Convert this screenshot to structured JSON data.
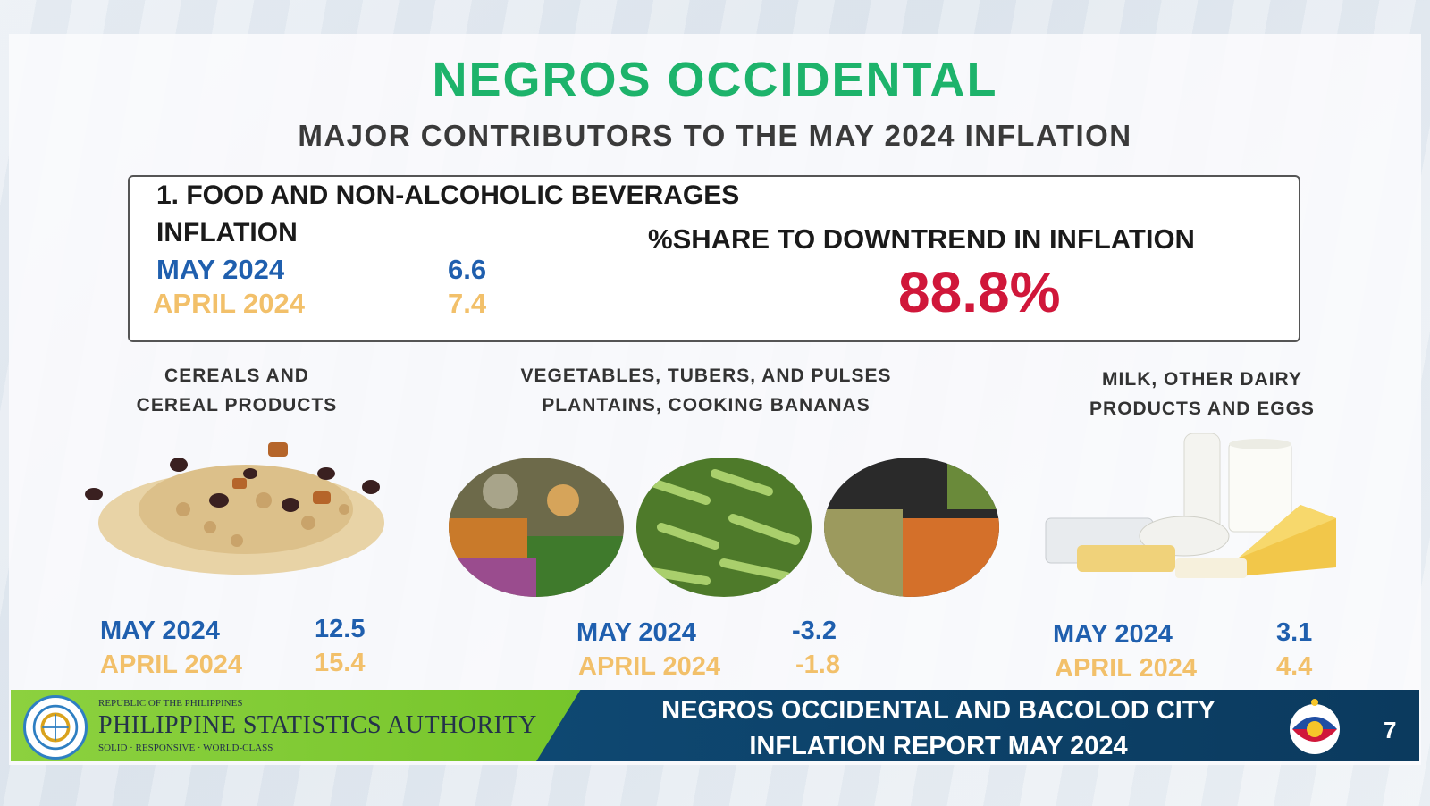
{
  "title": "NEGROS OCCIDENTAL",
  "subtitle": "MAJOR CONTRIBUTORS TO THE MAY 2024 INFLATION",
  "summary": {
    "category": "1. FOOD AND NON-ALCOHOLIC BEVERAGES",
    "inflation_label": "INFLATION",
    "may_label": "MAY 2024",
    "may_value": "6.6",
    "april_label": "APRIL 2024",
    "april_value": "7.4",
    "share_label": "%SHARE TO DOWNTREND IN INFLATION",
    "share_value": "88.8%"
  },
  "categories": [
    {
      "title_line1": "CEREALS AND",
      "title_line2": "CEREAL PRODUCTS",
      "may_label": "MAY 2024",
      "may_value": "12.5",
      "april_label": "APRIL 2024",
      "april_value": "15.4",
      "image": "cereal-icon"
    },
    {
      "title_line1": "VEGETABLES, TUBERS, AND PULSES",
      "title_line2": "PLANTAINS, COOKING BANANAS",
      "may_label": "MAY 2024",
      "may_value": "-3.2",
      "april_label": "APRIL 2024",
      "april_value": "-1.8",
      "image": "vegetables-icon"
    },
    {
      "title_line1": "MILK, OTHER DAIRY",
      "title_line2": "PRODUCTS AND EGGS",
      "may_label": "MAY 2024",
      "may_value": "3.1",
      "april_label": "APRIL 2024",
      "april_value": "4.4",
      "image": "dairy-icon"
    }
  ],
  "footer": {
    "republic": "REPUBLIC OF THE PHILIPPINES",
    "agency": "PHILIPPINE STATISTICS AUTHORITY",
    "tagline": "SOLID · RESPONSIVE · WORLD-CLASS",
    "report_line1": "NEGROS OCCIDENTAL AND BACOLOD CITY",
    "report_line2": "INFLATION REPORT MAY 2024",
    "page_number": "7"
  },
  "colors": {
    "title_green": "#1db36b",
    "may_blue": "#1f5fae",
    "april_gold": "#f2c06a",
    "share_red": "#d0173a"
  }
}
